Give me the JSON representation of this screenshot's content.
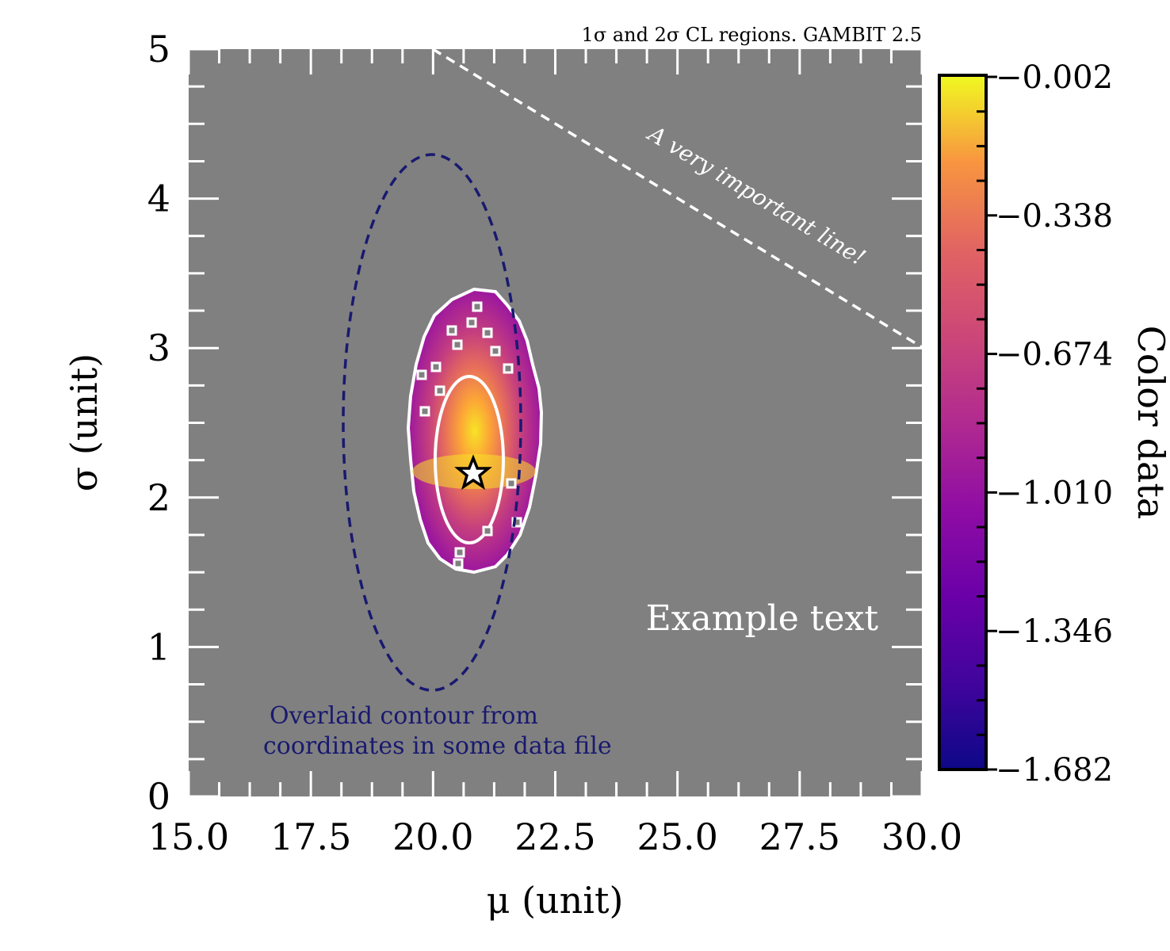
{
  "chart_data": {
    "type": "heatmap",
    "header": "1σ and 2σ CL regions. GAMBIT 2.5",
    "xlabel": "μ (unit)",
    "ylabel": "σ (unit)",
    "xlim": [
      15.0,
      30.0
    ],
    "ylim": [
      0,
      5
    ],
    "xticks": [
      "15.0",
      "17.5",
      "20.0",
      "22.5",
      "25.0",
      "27.5",
      "30.0"
    ],
    "yticks": [
      "0",
      "1",
      "2",
      "3",
      "4",
      "5"
    ],
    "background_color": "#808080",
    "colormap": "plasma",
    "colorbar": {
      "label": "Color data",
      "ticks": [
        "−0.002",
        "−0.338",
        "−0.674",
        "−1.010",
        "−1.346",
        "−1.682"
      ],
      "range": [
        -1.682,
        -0.002
      ]
    },
    "best_fit": {
      "mu": 20.85,
      "sigma": 2.15,
      "marker": "star-icon"
    },
    "heat_region": {
      "center": [
        20.85,
        2.17
      ],
      "one_sigma_contour": {
        "mu_range": [
          20.0,
          21.7
        ],
        "sigma_range": [
          1.72,
          2.82
        ]
      },
      "two_sigma_contour": {
        "mu_range": [
          19.5,
          22.2
        ],
        "sigma_range": [
          1.5,
          3.38
        ]
      }
    },
    "overlaid_contour": {
      "color": "#191970",
      "center": [
        19.95,
        2.5
      ],
      "mu_range": [
        18.25,
        21.8
      ],
      "sigma_range": [
        0.72,
        4.28
      ],
      "label": "Overlaid contour from\ncoordinates in some data file"
    },
    "line": {
      "points": [
        [
          20.0,
          5.0
        ],
        [
          30.0,
          3.0
        ]
      ],
      "style": "dashed",
      "color": "#ffffff",
      "label": "A very important line!"
    },
    "annotation": {
      "text": "Example text",
      "color": "#ffffff"
    }
  }
}
